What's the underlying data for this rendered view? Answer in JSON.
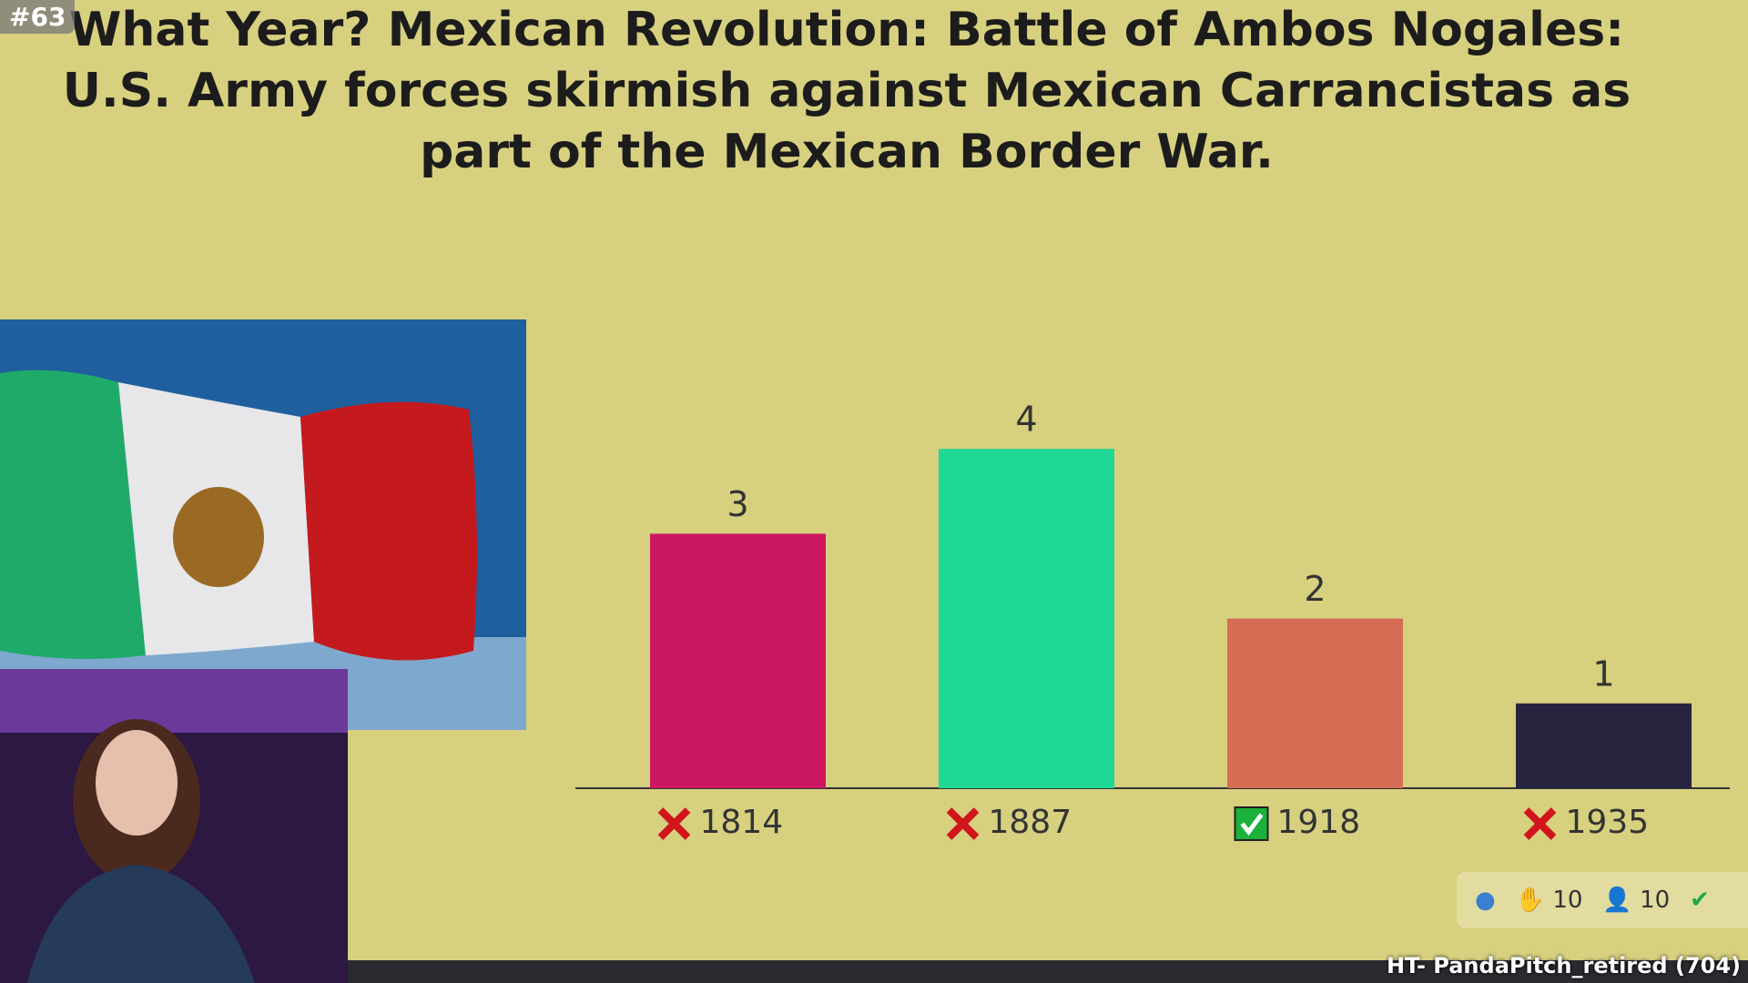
{
  "question": {
    "number": "#63",
    "text": "What Year? Mexican Revolution: Battle of Ambos Nogales: U.S. Army forces skirmish against Mexican Carrancistas as part of the Mexican Border War."
  },
  "results": {
    "type": "bar",
    "categories": [
      "1814",
      "1887",
      "1918",
      "1935"
    ],
    "values": [
      3,
      4,
      2,
      1
    ],
    "colors": [
      "#cc1863",
      "#1fd896",
      "#d66e55",
      "#27243f"
    ],
    "correct": [
      false,
      false,
      true,
      false
    ]
  },
  "toolbar": {
    "hands": "10",
    "participants": "10"
  },
  "user": "HT- PandaPitch_retired (704)"
}
